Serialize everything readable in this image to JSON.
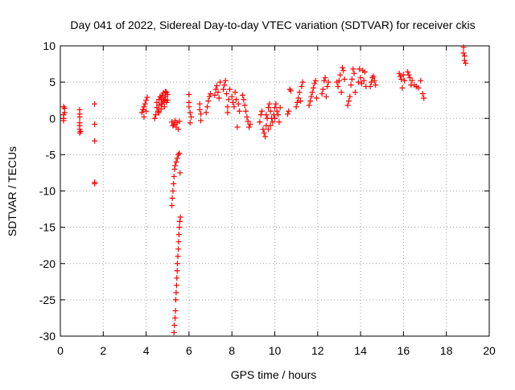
{
  "chart_data": {
    "type": "scatter",
    "title": "Day 041 of 2022, Sidereal Day-to-day VTEC variation (SDTVAR) for receiver ckis",
    "xlabel": "GPS time / hours",
    "ylabel": "SDTVAR / TECUs",
    "xlim": [
      0,
      20
    ],
    "ylim": [
      -30,
      10
    ],
    "x_ticks": [
      0,
      2,
      4,
      6,
      8,
      10,
      12,
      14,
      16,
      18,
      20
    ],
    "y_ticks": [
      -30,
      -25,
      -20,
      -15,
      -10,
      -5,
      0,
      5,
      10
    ],
    "x_tick_labels": [
      "0",
      "2",
      "4",
      "6",
      "8",
      "10",
      "12",
      "14",
      "16",
      "18",
      "20"
    ],
    "y_tick_labels": [
      "-30",
      "-25",
      "-20",
      "-15",
      "-10",
      "-5",
      "0",
      "5",
      "10"
    ],
    "grid": true,
    "marker": "+",
    "color": "#ff0000",
    "series": [
      {
        "name": "SDTVAR",
        "points": [
          [
            0.15,
            1.6
          ],
          [
            0.15,
            0.5
          ],
          [
            0.15,
            0.0
          ],
          [
            0.15,
            -0.3
          ],
          [
            0.2,
            1.4
          ],
          [
            0.2,
            0.8
          ],
          [
            0.9,
            1.2
          ],
          [
            0.9,
            0.6
          ],
          [
            0.9,
            0.2
          ],
          [
            0.9,
            -0.6
          ],
          [
            0.9,
            -1.0
          ],
          [
            0.9,
            -1.5
          ],
          [
            0.9,
            -2.0
          ],
          [
            0.95,
            -1.8
          ],
          [
            1.6,
            2.0
          ],
          [
            1.6,
            -0.8
          ],
          [
            1.6,
            -3.1
          ],
          [
            1.6,
            -8.8
          ],
          [
            1.6,
            -9.0
          ],
          [
            3.8,
            0.8
          ],
          [
            3.85,
            1.2
          ],
          [
            3.9,
            1.6
          ],
          [
            3.95,
            2.0
          ],
          [
            4.0,
            2.5
          ],
          [
            4.05,
            2.9
          ],
          [
            3.9,
            0.2
          ],
          [
            4.0,
            1.0
          ],
          [
            4.4,
            0.0
          ],
          [
            4.45,
            0.5
          ],
          [
            4.5,
            1.5
          ],
          [
            4.5,
            2.2
          ],
          [
            4.55,
            1.0
          ],
          [
            4.6,
            2.6
          ],
          [
            4.6,
            1.8
          ],
          [
            4.65,
            3.0
          ],
          [
            4.7,
            2.0
          ],
          [
            4.7,
            2.8
          ],
          [
            4.75,
            3.2
          ],
          [
            4.8,
            2.4
          ],
          [
            4.8,
            3.5
          ],
          [
            4.85,
            1.6
          ],
          [
            4.9,
            3.0
          ],
          [
            4.9,
            3.7
          ],
          [
            4.95,
            2.2
          ],
          [
            5.0,
            3.3
          ],
          [
            5.0,
            2.5
          ],
          [
            4.6,
            0.8
          ],
          [
            4.7,
            1.3
          ],
          [
            4.75,
            2.0
          ],
          [
            4.85,
            2.6
          ],
          [
            4.95,
            3.6
          ],
          [
            5.2,
            -0.5
          ],
          [
            5.25,
            -1.0
          ],
          [
            5.3,
            -0.8
          ],
          [
            5.35,
            -0.3
          ],
          [
            5.4,
            -1.2
          ],
          [
            5.45,
            -0.6
          ],
          [
            5.5,
            -1.5
          ],
          [
            5.55,
            -0.4
          ],
          [
            5.2,
            -12.0
          ],
          [
            5.22,
            -11.0
          ],
          [
            5.25,
            -10.0
          ],
          [
            5.28,
            -9.0
          ],
          [
            5.3,
            -8.0
          ],
          [
            5.33,
            -7.0
          ],
          [
            5.35,
            -6.5
          ],
          [
            5.4,
            -6.0
          ],
          [
            5.45,
            -5.5
          ],
          [
            5.5,
            -5.0
          ],
          [
            5.55,
            -4.8
          ],
          [
            5.58,
            -7.5
          ],
          [
            5.3,
            -29.5
          ],
          [
            5.32,
            -28.5
          ],
          [
            5.35,
            -27.5
          ],
          [
            5.37,
            -26.5
          ],
          [
            5.38,
            -25.0
          ],
          [
            5.4,
            -24.0
          ],
          [
            5.42,
            -23.0
          ],
          [
            5.43,
            -22.0
          ],
          [
            5.45,
            -21.0
          ],
          [
            5.46,
            -20.0
          ],
          [
            5.48,
            -19.0
          ],
          [
            5.5,
            -18.0
          ],
          [
            5.52,
            -17.0
          ],
          [
            5.53,
            -16.0
          ],
          [
            5.55,
            -15.0
          ],
          [
            5.57,
            -14.2
          ],
          [
            5.6,
            -13.6
          ],
          [
            6.0,
            3.3
          ],
          [
            6.0,
            2.2
          ],
          [
            6.0,
            1.6
          ],
          [
            6.05,
            0.8
          ],
          [
            6.05,
            -0.6
          ],
          [
            6.1,
            0.2
          ],
          [
            6.5,
            2.0
          ],
          [
            6.5,
            1.2
          ],
          [
            6.55,
            0.6
          ],
          [
            6.55,
            -0.3
          ],
          [
            6.8,
            0.8
          ],
          [
            6.85,
            1.6
          ],
          [
            6.9,
            2.4
          ],
          [
            6.95,
            3.0
          ],
          [
            7.0,
            3.4
          ],
          [
            7.2,
            3.2
          ],
          [
            7.25,
            4.0
          ],
          [
            7.3,
            4.5
          ],
          [
            7.35,
            3.6
          ],
          [
            7.4,
            2.8
          ],
          [
            7.45,
            5.0
          ],
          [
            7.6,
            4.0
          ],
          [
            7.65,
            4.6
          ],
          [
            7.7,
            5.2
          ],
          [
            7.75,
            3.4
          ],
          [
            7.8,
            0.8
          ],
          [
            7.8,
            1.6
          ],
          [
            7.85,
            2.6
          ],
          [
            7.9,
            4.0
          ],
          [
            8.0,
            3.0
          ],
          [
            8.05,
            2.2
          ],
          [
            8.1,
            1.6
          ],
          [
            8.15,
            3.6
          ],
          [
            8.2,
            2.6
          ],
          [
            8.25,
            -1.2
          ],
          [
            8.3,
            2.0
          ],
          [
            8.35,
            1.0
          ],
          [
            8.5,
            3.2
          ],
          [
            8.55,
            2.6
          ],
          [
            8.6,
            1.8
          ],
          [
            8.65,
            1.0
          ],
          [
            8.7,
            0.2
          ],
          [
            8.75,
            -0.4
          ],
          [
            8.8,
            -1.2
          ],
          [
            8.85,
            -0.8
          ],
          [
            9.3,
            -0.5
          ],
          [
            9.35,
            0.5
          ],
          [
            9.4,
            1.0
          ],
          [
            9.45,
            -1.5
          ],
          [
            9.5,
            -2.0
          ],
          [
            9.55,
            -2.5
          ],
          [
            9.6,
            -1.0
          ],
          [
            9.65,
            0.0
          ],
          [
            9.7,
            1.5
          ],
          [
            9.75,
            2.0
          ],
          [
            9.8,
            1.0
          ],
          [
            9.85,
            0.0
          ],
          [
            9.9,
            -0.5
          ],
          [
            9.95,
            0.5
          ],
          [
            10.0,
            1.5
          ],
          [
            10.05,
            2.0
          ],
          [
            10.1,
            1.0
          ],
          [
            10.15,
            0.5
          ],
          [
            10.2,
            -0.5
          ],
          [
            10.25,
            1.5
          ],
          [
            9.6,
            0.5
          ],
          [
            9.8,
            -1.0
          ],
          [
            10.0,
            0.0
          ],
          [
            9.7,
            -1.5
          ],
          [
            10.6,
            0.6
          ],
          [
            10.65,
            1.0
          ],
          [
            10.7,
            4.0
          ],
          [
            10.75,
            3.8
          ],
          [
            11.0,
            1.6
          ],
          [
            11.05,
            2.2
          ],
          [
            11.1,
            2.8
          ],
          [
            11.15,
            3.6
          ],
          [
            11.2,
            2.4
          ],
          [
            11.25,
            4.4
          ],
          [
            11.3,
            5.0
          ],
          [
            11.6,
            1.8
          ],
          [
            11.65,
            2.4
          ],
          [
            11.7,
            3.0
          ],
          [
            11.75,
            3.6
          ],
          [
            11.8,
            4.2
          ],
          [
            11.85,
            4.8
          ],
          [
            11.9,
            5.2
          ],
          [
            11.95,
            2.8
          ],
          [
            12.2,
            3.4
          ],
          [
            12.25,
            4.0
          ],
          [
            12.3,
            5.2
          ],
          [
            12.35,
            5.6
          ],
          [
            12.4,
            3.0
          ],
          [
            12.45,
            4.4
          ],
          [
            12.5,
            5.0
          ],
          [
            12.9,
            5.0
          ],
          [
            12.95,
            4.4
          ],
          [
            13.0,
            5.2
          ],
          [
            13.05,
            6.0
          ],
          [
            13.1,
            3.6
          ],
          [
            13.15,
            7.0
          ],
          [
            13.2,
            6.6
          ],
          [
            13.25,
            5.4
          ],
          [
            13.4,
            1.8
          ],
          [
            13.45,
            2.4
          ],
          [
            13.5,
            3.0
          ],
          [
            13.55,
            4.6
          ],
          [
            13.6,
            5.4
          ],
          [
            13.65,
            6.8
          ],
          [
            13.7,
            6.2
          ],
          [
            13.75,
            3.6
          ],
          [
            13.9,
            5.0
          ],
          [
            13.95,
            6.8
          ],
          [
            14.0,
            5.6
          ],
          [
            14.05,
            4.8
          ],
          [
            14.1,
            6.6
          ],
          [
            14.15,
            5.2
          ],
          [
            14.2,
            6.4
          ],
          [
            14.25,
            4.4
          ],
          [
            14.45,
            4.4
          ],
          [
            14.5,
            5.0
          ],
          [
            14.55,
            5.6
          ],
          [
            14.6,
            5.8
          ],
          [
            14.65,
            5.2
          ],
          [
            14.7,
            4.6
          ],
          [
            15.8,
            6.2
          ],
          [
            15.85,
            5.8
          ],
          [
            15.9,
            5.4
          ],
          [
            15.95,
            4.2
          ],
          [
            16.0,
            6.0
          ],
          [
            16.05,
            5.2
          ],
          [
            16.2,
            6.4
          ],
          [
            16.25,
            6.0
          ],
          [
            16.3,
            5.6
          ],
          [
            16.35,
            4.6
          ],
          [
            16.4,
            5.2
          ],
          [
            16.5,
            4.6
          ],
          [
            16.6,
            4.4
          ],
          [
            16.7,
            4.2
          ],
          [
            16.8,
            5.2
          ],
          [
            16.9,
            3.4
          ],
          [
            16.95,
            2.8
          ],
          [
            18.8,
            9.8
          ],
          [
            18.8,
            9.0
          ],
          [
            18.85,
            8.6
          ],
          [
            18.85,
            8.0
          ],
          [
            18.9,
            7.6
          ]
        ]
      }
    ]
  }
}
